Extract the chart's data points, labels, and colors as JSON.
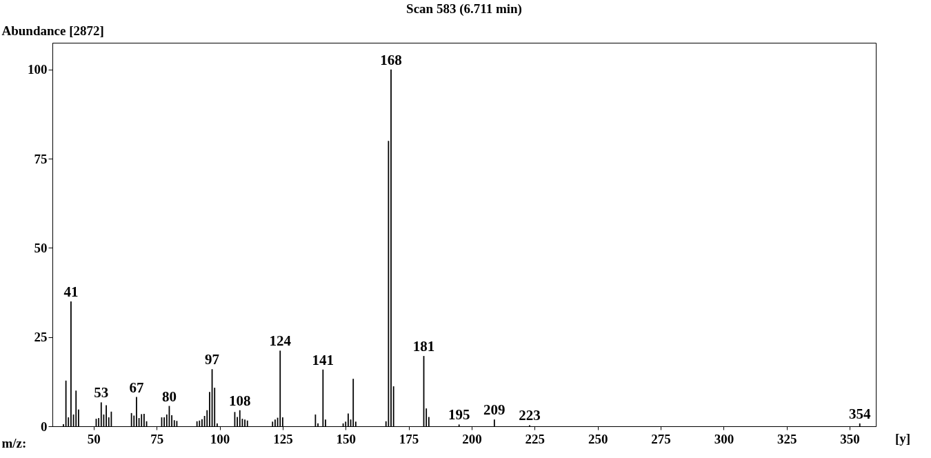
{
  "chart_data": {
    "type": "bar",
    "title": "Scan 583 (6.711 min)",
    "ylabel": "Abundance [2872]",
    "xlabel": "m/z:",
    "x": [
      38,
      39,
      40,
      41,
      42,
      43,
      44,
      51,
      52,
      53,
      54,
      55,
      56,
      57,
      65,
      66,
      67,
      68,
      69,
      70,
      71,
      77,
      78,
      79,
      80,
      81,
      82,
      83,
      91,
      92,
      93,
      94,
      95,
      96,
      97,
      98,
      99,
      106,
      107,
      108,
      109,
      110,
      111,
      121,
      122,
      123,
      124,
      125,
      138,
      139,
      141,
      142,
      149,
      150,
      151,
      152,
      153,
      154,
      166,
      167,
      168,
      169,
      181,
      182,
      183,
      195,
      209,
      223,
      354
    ],
    "values": [
      0.6,
      12.8,
      2.5,
      35,
      3.3,
      10,
      4.7,
      2.1,
      2.3,
      6.7,
      3.3,
      5.9,
      2.5,
      4.1,
      3.7,
      3,
      8.2,
      2.3,
      3.4,
      3.5,
      1.4,
      2.5,
      2.5,
      3.3,
      5.7,
      3.1,
      1.7,
      1.5,
      1.4,
      1.6,
      2,
      2.9,
      4.5,
      9.6,
      16,
      10.8,
      0.8,
      4,
      2.6,
      4.5,
      2.1,
      1.9,
      1.6,
      1.3,
      1.9,
      2.4,
      21.2,
      2.5,
      3.3,
      0.8,
      15.9,
      1.9,
      0.8,
      1.3,
      3.6,
      1.9,
      13.3,
      1.3,
      1.4,
      80,
      100,
      11.2,
      19.7,
      5,
      2.6,
      0.5,
      1.9,
      0.3,
      0.8
    ],
    "color": "#000000",
    "xlim": [
      35,
      359
    ],
    "xticks": [
      50,
      75,
      100,
      125,
      150,
      175,
      200,
      225,
      250,
      275,
      300,
      325,
      350
    ],
    "ylim": [
      0,
      107.5
    ],
    "yticks": [
      0,
      25,
      50,
      75,
      100
    ],
    "annotations": [
      {
        "text": "41",
        "x": 41,
        "y": 35
      },
      {
        "text": "53",
        "x": 53,
        "y": 6.7
      },
      {
        "text": "67",
        "x": 67,
        "y": 8.2
      },
      {
        "text": "80",
        "x": 80,
        "y": 5.7
      },
      {
        "text": "97",
        "x": 97,
        "y": 16
      },
      {
        "text": "108",
        "x": 108,
        "y": 4.5
      },
      {
        "text": "124",
        "x": 124,
        "y": 21.2
      },
      {
        "text": "141",
        "x": 141,
        "y": 15.9
      },
      {
        "text": "168",
        "x": 168,
        "y": 100
      },
      {
        "text": "181",
        "x": 181,
        "y": 19.7
      },
      {
        "text": "195",
        "x": 195,
        "y": 0.5
      },
      {
        "text": "209",
        "x": 209,
        "y": 1.9
      },
      {
        "text": "223",
        "x": 223,
        "y": 0.3
      },
      {
        "text": "354",
        "x": 354,
        "y": 0.8
      },
      "[y]"
    ]
  }
}
